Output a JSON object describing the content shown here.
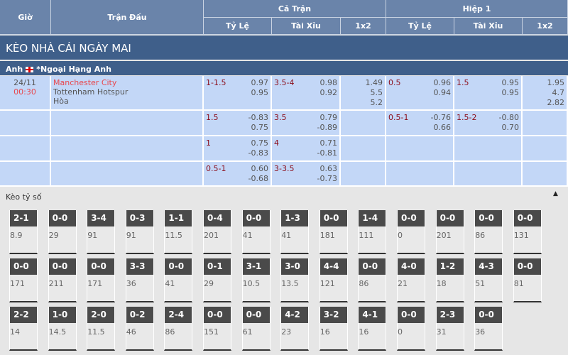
{
  "header": {
    "gio": "Giờ",
    "tran_dau": "Trận Đấu",
    "ca_tran": "Cả Trận",
    "hiep1": "Hiệp 1",
    "ty_le": "Tỷ Lệ",
    "tai_xiu": "Tài Xỉu",
    "x12": "1x2"
  },
  "section_title": "KÈO NHÀ CÁI NGÀY MAI",
  "league": {
    "country": "Anh",
    "flag": "england-flag-icon",
    "name": "*Ngoại Hạng Anh"
  },
  "match": {
    "date": "24/11",
    "time": "00:30",
    "home": "Manchester City",
    "away": "Tottenham Hotspur",
    "draw": "Hòa"
  },
  "rows": [
    {
      "ft_hc": "1-1.5",
      "ft_hc_odds": [
        "0.97",
        "0.95"
      ],
      "ft_ou": "3.5-4",
      "ft_ou_odds": [
        "0.98",
        "0.92"
      ],
      "ft_1x2": [
        "1.49",
        "5.5",
        "5.2"
      ],
      "h1_hc": "0.5",
      "h1_hc_odds": [
        "0.96",
        "0.94"
      ],
      "h1_ou": "1.5",
      "h1_ou_odds": [
        "0.95",
        "0.95"
      ],
      "h1_1x2": [
        "1.95",
        "4.7",
        "2.82"
      ]
    },
    {
      "ft_hc": "1.5",
      "ft_hc_odds": [
        "-0.83",
        "0.75"
      ],
      "ft_ou": "3.5",
      "ft_ou_odds": [
        "0.79",
        "-0.89"
      ],
      "ft_1x2": [],
      "h1_hc": "0.5-1",
      "h1_hc_odds": [
        "-0.76",
        "0.66"
      ],
      "h1_ou": "1.5-2",
      "h1_ou_odds": [
        "-0.80",
        "0.70"
      ],
      "h1_1x2": []
    },
    {
      "ft_hc": "1",
      "ft_hc_odds": [
        "0.75",
        "-0.83"
      ],
      "ft_ou": "4",
      "ft_ou_odds": [
        "0.71",
        "-0.81"
      ],
      "ft_1x2": [],
      "h1_hc": "",
      "h1_hc_odds": [],
      "h1_ou": "",
      "h1_ou_odds": [],
      "h1_1x2": []
    },
    {
      "ft_hc": "0.5-1",
      "ft_hc_odds": [
        "0.60",
        "-0.68"
      ],
      "ft_ou": "3-3.5",
      "ft_ou_odds": [
        "0.63",
        "-0.73"
      ],
      "ft_1x2": [],
      "h1_hc": "",
      "h1_hc_odds": [],
      "h1_ou": "",
      "h1_ou_odds": [],
      "h1_1x2": []
    }
  ],
  "correct_score": {
    "title": "Kèo tỷ số",
    "collapse_icon": "triangle-up-icon",
    "cards": [
      [
        [
          "2-1",
          "8.9"
        ],
        [
          "0-0",
          "29"
        ],
        [
          "3-4",
          "91"
        ],
        [
          "0-3",
          "91"
        ],
        [
          "1-1",
          "11.5"
        ],
        [
          "0-4",
          "201"
        ],
        [
          "0-0",
          "41"
        ],
        [
          "1-3",
          "41"
        ],
        [
          "0-0",
          "181"
        ],
        [
          "1-4",
          "111"
        ],
        [
          "0-0",
          "0"
        ],
        [
          "0-0",
          "201"
        ],
        [
          "0-0",
          "86"
        ],
        [
          "0-0",
          "131"
        ]
      ],
      [
        [
          "0-0",
          "171"
        ],
        [
          "0-0",
          "211"
        ],
        [
          "0-0",
          "171"
        ],
        [
          "3-3",
          "36"
        ],
        [
          "0-0",
          "41"
        ],
        [
          "0-1",
          "29"
        ],
        [
          "3-1",
          "10.5"
        ],
        [
          "3-0",
          "13.5"
        ],
        [
          "4-4",
          "121"
        ],
        [
          "0-0",
          "86"
        ],
        [
          "4-0",
          "21"
        ],
        [
          "1-2",
          "18"
        ],
        [
          "4-3",
          "51"
        ],
        [
          "0-0",
          "81"
        ]
      ],
      [
        [
          "2-2",
          "14"
        ],
        [
          "1-0",
          "14.5"
        ],
        [
          "2-0",
          "11.5"
        ],
        [
          "0-2",
          "46"
        ],
        [
          "2-4",
          "86"
        ],
        [
          "0-0",
          "151"
        ],
        [
          "0-0",
          "61"
        ],
        [
          "4-2",
          "23"
        ],
        [
          "3-2",
          "16"
        ],
        [
          "4-1",
          "16"
        ],
        [
          "0-0",
          "0"
        ],
        [
          "2-3",
          "31"
        ],
        [
          "0-0",
          "36"
        ]
      ]
    ]
  },
  "colors": {
    "header": "#6a84aa",
    "band": "#3f5f8a",
    "cell": "#c3d7f7",
    "handicap": "#8b0d1a",
    "home": "#e8474d"
  }
}
